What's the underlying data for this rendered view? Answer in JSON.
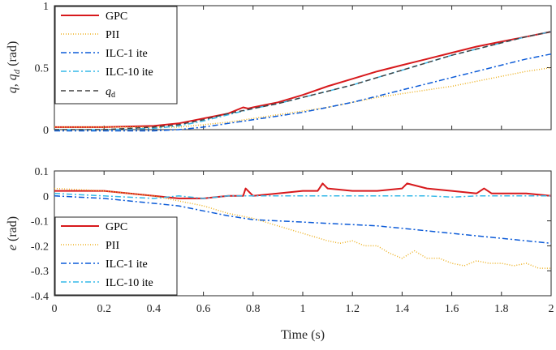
{
  "chart_data": [
    {
      "type": "line",
      "ylabel": "q, q_d (rad)",
      "ylim": [
        0,
        1
      ],
      "xlim": [
        0,
        2
      ],
      "yticks": [
        {
          "v": 0,
          "label": "0"
        },
        {
          "v": 0.5,
          "label": "0.5"
        },
        {
          "v": 1,
          "label": "1"
        }
      ],
      "legend_position": "top-left",
      "series": [
        {
          "name": "GPC",
          "color": "#d7191c",
          "dash": "solid",
          "width": 2,
          "points": [
            [
              0,
              0.02
            ],
            [
              0.2,
              0.02
            ],
            [
              0.4,
              0.03
            ],
            [
              0.5,
              0.05
            ],
            [
              0.6,
              0.09
            ],
            [
              0.7,
              0.13
            ],
            [
              0.76,
              0.18
            ],
            [
              0.78,
              0.17
            ],
            [
              0.8,
              0.18
            ],
            [
              0.9,
              0.22
            ],
            [
              1.0,
              0.28
            ],
            [
              1.1,
              0.35
            ],
            [
              1.2,
              0.41
            ],
            [
              1.3,
              0.47
            ],
            [
              1.4,
              0.52
            ],
            [
              1.5,
              0.57
            ],
            [
              1.6,
              0.62
            ],
            [
              1.7,
              0.67
            ],
            [
              1.8,
              0.71
            ],
            [
              1.9,
              0.75
            ],
            [
              2.0,
              0.79
            ]
          ]
        },
        {
          "name": "PII",
          "color": "#edb120",
          "dash": "1,2",
          "width": 1.5,
          "points": [
            [
              0,
              0.02
            ],
            [
              0.2,
              0.02
            ],
            [
              0.4,
              0.02
            ],
            [
              0.5,
              0.02
            ],
            [
              0.6,
              0.04
            ],
            [
              0.7,
              0.06
            ],
            [
              0.8,
              0.09
            ],
            [
              0.9,
              0.12
            ],
            [
              1.0,
              0.15
            ],
            [
              1.1,
              0.18
            ],
            [
              1.2,
              0.22
            ],
            [
              1.3,
              0.26
            ],
            [
              1.4,
              0.29
            ],
            [
              1.5,
              0.32
            ],
            [
              1.6,
              0.35
            ],
            [
              1.7,
              0.39
            ],
            [
              1.8,
              0.43
            ],
            [
              1.9,
              0.47
            ],
            [
              2.0,
              0.5
            ]
          ]
        },
        {
          "name": "ILC-1 ite",
          "color": "#0c5bd8",
          "dash": "7,3,2,3",
          "width": 1.5,
          "points": [
            [
              0,
              -0.01
            ],
            [
              0.2,
              -0.01
            ],
            [
              0.4,
              -0.01
            ],
            [
              0.5,
              0
            ],
            [
              0.6,
              0.02
            ],
            [
              0.7,
              0.05
            ],
            [
              0.8,
              0.08
            ],
            [
              0.9,
              0.11
            ],
            [
              1.0,
              0.14
            ],
            [
              1.1,
              0.18
            ],
            [
              1.2,
              0.22
            ],
            [
              1.3,
              0.27
            ],
            [
              1.4,
              0.32
            ],
            [
              1.5,
              0.37
            ],
            [
              1.6,
              0.42
            ],
            [
              1.7,
              0.47
            ],
            [
              1.8,
              0.52
            ],
            [
              1.9,
              0.57
            ],
            [
              2.0,
              0.61
            ]
          ]
        },
        {
          "name": "ILC-10 ite",
          "color": "#35b8e8",
          "dash": "7,3,2,3",
          "width": 1.5,
          "points": [
            [
              0,
              0
            ],
            [
              0.2,
              0
            ],
            [
              0.4,
              0.01
            ],
            [
              0.5,
              0.03
            ],
            [
              0.6,
              0.07
            ],
            [
              0.7,
              0.12
            ],
            [
              0.8,
              0.17
            ],
            [
              0.9,
              0.21
            ],
            [
              1.0,
              0.26
            ],
            [
              1.1,
              0.31
            ],
            [
              1.2,
              0.36
            ],
            [
              1.3,
              0.42
            ],
            [
              1.4,
              0.48
            ],
            [
              1.5,
              0.54
            ],
            [
              1.6,
              0.6
            ],
            [
              1.7,
              0.65
            ],
            [
              1.8,
              0.7
            ],
            [
              1.9,
              0.75
            ],
            [
              2.0,
              0.79
            ]
          ]
        },
        {
          "name": "q_d",
          "color": "#404040",
          "dash": "6,4",
          "width": 1.5,
          "points": [
            [
              0,
              0
            ],
            [
              0.2,
              0
            ],
            [
              0.4,
              0.02
            ],
            [
              0.5,
              0.04
            ],
            [
              0.6,
              0.08
            ],
            [
              0.7,
              0.13
            ],
            [
              0.8,
              0.17
            ],
            [
              0.9,
              0.21
            ],
            [
              1.0,
              0.26
            ],
            [
              1.1,
              0.31
            ],
            [
              1.2,
              0.36
            ],
            [
              1.3,
              0.42
            ],
            [
              1.4,
              0.48
            ],
            [
              1.5,
              0.54
            ],
            [
              1.6,
              0.6
            ],
            [
              1.7,
              0.65
            ],
            [
              1.8,
              0.7
            ],
            [
              1.9,
              0.75
            ],
            [
              2.0,
              0.79
            ]
          ]
        }
      ]
    },
    {
      "type": "line",
      "ylabel": "e (rad)",
      "xlabel": "Time (s)",
      "ylim": [
        -0.4,
        0.1
      ],
      "xlim": [
        0,
        2
      ],
      "yticks": [
        {
          "v": 0.1,
          "label": "0.1"
        },
        {
          "v": 0,
          "label": "0"
        },
        {
          "v": -0.1,
          "label": "-0.1"
        },
        {
          "v": -0.2,
          "label": "-0.2"
        },
        {
          "v": -0.3,
          "label": "-0.3"
        },
        {
          "v": -0.4,
          "label": "-0.4"
        }
      ],
      "xticks": [
        {
          "v": 0,
          "label": "0"
        },
        {
          "v": 0.2,
          "label": "0.2"
        },
        {
          "v": 0.4,
          "label": "0.4"
        },
        {
          "v": 0.6,
          "label": "0.6"
        },
        {
          "v": 0.8,
          "label": "0.8"
        },
        {
          "v": 1,
          "label": "1"
        },
        {
          "v": 1.2,
          "label": "1.2"
        },
        {
          "v": 1.4,
          "label": "1.4"
        },
        {
          "v": 1.6,
          "label": "1.6"
        },
        {
          "v": 1.8,
          "label": "1.8"
        },
        {
          "v": 2,
          "label": "2"
        }
      ],
      "legend_position": "bottom-left",
      "series": [
        {
          "name": "GPC",
          "color": "#d7191c",
          "dash": "solid",
          "width": 2,
          "points": [
            [
              0,
              0.02
            ],
            [
              0.2,
              0.02
            ],
            [
              0.4,
              0.0
            ],
            [
              0.5,
              -0.01
            ],
            [
              0.6,
              -0.01
            ],
            [
              0.7,
              0.0
            ],
            [
              0.76,
              0.0
            ],
            [
              0.77,
              0.03
            ],
            [
              0.8,
              0.0
            ],
            [
              0.9,
              0.01
            ],
            [
              1.0,
              0.02
            ],
            [
              1.06,
              0.02
            ],
            [
              1.08,
              0.05
            ],
            [
              1.1,
              0.03
            ],
            [
              1.2,
              0.02
            ],
            [
              1.3,
              0.02
            ],
            [
              1.4,
              0.03
            ],
            [
              1.42,
              0.05
            ],
            [
              1.5,
              0.03
            ],
            [
              1.6,
              0.02
            ],
            [
              1.7,
              0.01
            ],
            [
              1.73,
              0.03
            ],
            [
              1.76,
              0.01
            ],
            [
              1.8,
              0.01
            ],
            [
              1.9,
              0.01
            ],
            [
              2.0,
              0.0
            ]
          ]
        },
        {
          "name": "PII",
          "color": "#edb120",
          "dash": "1,2",
          "width": 1.5,
          "points": [
            [
              0,
              0.03
            ],
            [
              0.2,
              0.02
            ],
            [
              0.4,
              0.0
            ],
            [
              0.5,
              -0.02
            ],
            [
              0.6,
              -0.04
            ],
            [
              0.7,
              -0.07
            ],
            [
              0.8,
              -0.09
            ],
            [
              0.9,
              -0.12
            ],
            [
              1.0,
              -0.15
            ],
            [
              1.1,
              -0.18
            ],
            [
              1.15,
              -0.19
            ],
            [
              1.2,
              -0.18
            ],
            [
              1.25,
              -0.2
            ],
            [
              1.3,
              -0.2
            ],
            [
              1.35,
              -0.23
            ],
            [
              1.4,
              -0.25
            ],
            [
              1.45,
              -0.22
            ],
            [
              1.5,
              -0.25
            ],
            [
              1.55,
              -0.25
            ],
            [
              1.6,
              -0.27
            ],
            [
              1.65,
              -0.28
            ],
            [
              1.7,
              -0.26
            ],
            [
              1.75,
              -0.27
            ],
            [
              1.8,
              -0.27
            ],
            [
              1.85,
              -0.28
            ],
            [
              1.9,
              -0.27
            ],
            [
              1.95,
              -0.29
            ],
            [
              2.0,
              -0.29
            ]
          ]
        },
        {
          "name": "ILC-1 ite",
          "color": "#0c5bd8",
          "dash": "7,3,2,3",
          "width": 1.5,
          "points": [
            [
              0,
              0
            ],
            [
              0.2,
              -0.01
            ],
            [
              0.4,
              -0.03
            ],
            [
              0.5,
              -0.04
            ],
            [
              0.6,
              -0.06
            ],
            [
              0.7,
              -0.08
            ],
            [
              0.8,
              -0.095
            ],
            [
              0.9,
              -0.1
            ],
            [
              1.0,
              -0.105
            ],
            [
              1.1,
              -0.11
            ],
            [
              1.2,
              -0.115
            ],
            [
              1.3,
              -0.12
            ],
            [
              1.4,
              -0.13
            ],
            [
              1.5,
              -0.14
            ],
            [
              1.6,
              -0.15
            ],
            [
              1.7,
              -0.16
            ],
            [
              1.8,
              -0.17
            ],
            [
              1.9,
              -0.18
            ],
            [
              2.0,
              -0.19
            ]
          ]
        },
        {
          "name": "ILC-10 ite",
          "color": "#35b8e8",
          "dash": "7,3,2,3",
          "width": 1.5,
          "points": [
            [
              0,
              0.01
            ],
            [
              0.2,
              0.0
            ],
            [
              0.4,
              -0.01
            ],
            [
              0.5,
              0.0
            ],
            [
              0.6,
              -0.01
            ],
            [
              0.7,
              0.0
            ],
            [
              0.8,
              0.0
            ],
            [
              0.9,
              0.0
            ],
            [
              1.0,
              0.0
            ],
            [
              1.1,
              0.0
            ],
            [
              1.2,
              0.0
            ],
            [
              1.3,
              0.0
            ],
            [
              1.4,
              0.0
            ],
            [
              1.5,
              0.0
            ],
            [
              1.6,
              -0.005
            ],
            [
              1.7,
              0.0
            ],
            [
              1.8,
              0.0
            ],
            [
              1.9,
              0.0
            ],
            [
              2.0,
              0.0
            ]
          ]
        }
      ]
    }
  ]
}
